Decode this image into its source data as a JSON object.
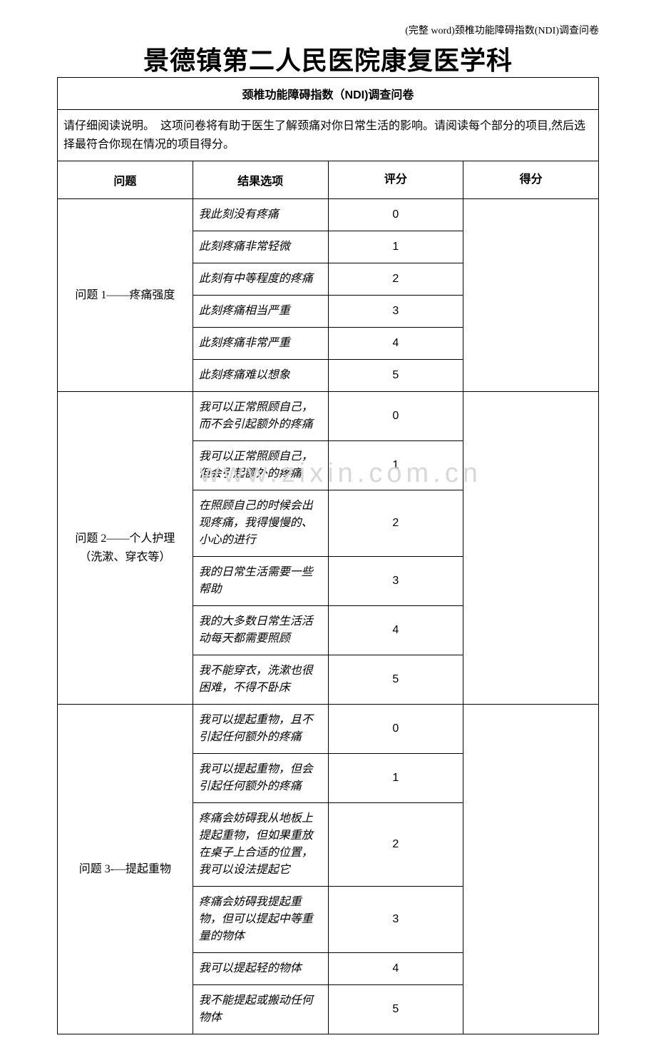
{
  "header_right": "(完整 word)颈椎功能障碍指数(NDI)调查问卷",
  "main_title": "景德镇第二人民医院康复医学科",
  "subtitle": "颈椎功能障碍指数（NDI)调查问卷",
  "instructions": "请仔细阅读说明。　这项问卷将有助于医生了解颈痛对你日常生活的影响。请阅读每个部分的项目,然后选择最符合你现在情况的项目得分。",
  "columns": {
    "question": "问题",
    "options": "结果选项",
    "score": "评分",
    "result": "得分"
  },
  "watermark": "www.zixin.com.cn",
  "questions": [
    {
      "label": "问题 1——疼痛强度",
      "options": [
        {
          "text": "我此刻没有疼痛",
          "score": "0"
        },
        {
          "text": "此刻疼痛非常轻微",
          "score": "1"
        },
        {
          "text": "此刻有中等程度的疼痛",
          "score": "2"
        },
        {
          "text": "此刻疼痛相当严重",
          "score": "3"
        },
        {
          "text": "此刻疼痛非常严重",
          "score": "4"
        },
        {
          "text": "此刻疼痛难以想象",
          "score": "5"
        }
      ]
    },
    {
      "label": "问题 2——个人护理\n（洗漱、穿衣等）",
      "options": [
        {
          "text": "我可以正常照顾自己，而不会引起额外的疼痛",
          "score": "0"
        },
        {
          "text": "我可以正常照顾自己，但会引起额外的疼痛",
          "score": "1"
        },
        {
          "text": "在照顾自己的时候会出现疼痛，我得慢慢的、小心的进行",
          "score": "2"
        },
        {
          "text": "我的日常生活需要一些帮助",
          "score": "3"
        },
        {
          "text": "我的大多数日常生活活动每天都需要照顾",
          "score": "4"
        },
        {
          "text": "我不能穿衣，洗漱也很困难，不得不卧床",
          "score": "5"
        }
      ]
    },
    {
      "label": "问题 3-—提起重物",
      "options": [
        {
          "text": "我可以提起重物，且不引起任何额外的疼痛",
          "score": "0"
        },
        {
          "text": "我可以提起重物，但会引起任何额外的疼痛",
          "score": "1"
        },
        {
          "text": "疼痛会妨碍我从地板上提起重物，但如果重放在桌子上合适的位置，我可以设法提起它",
          "score": "2"
        },
        {
          "text": "疼痛会妨碍我提起重物，但可以提起中等重量的物体",
          "score": "3"
        },
        {
          "text": "我可以提起轻的物体",
          "score": "4"
        },
        {
          "text": "我不能提起或搬动任何物体",
          "score": "5"
        }
      ]
    }
  ]
}
